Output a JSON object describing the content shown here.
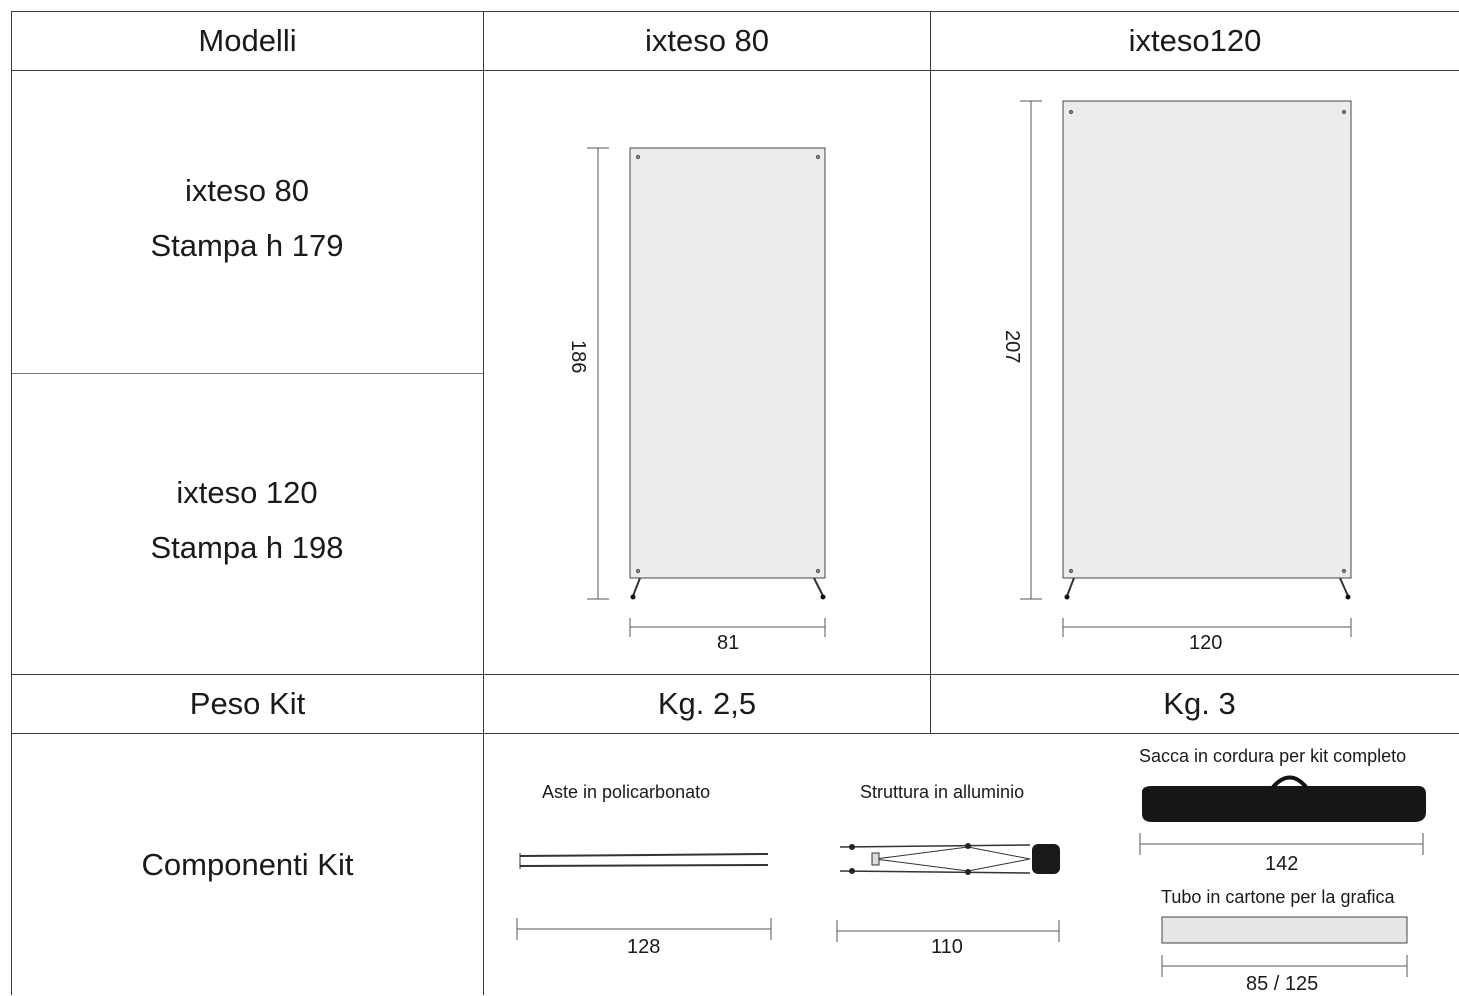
{
  "header": {
    "col_label": "Modelli",
    "col_a": "ixteso 80",
    "col_b": "ixteso120"
  },
  "models": [
    {
      "name": "ixteso 80",
      "print": "Stampa h 179"
    },
    {
      "name": "ixteso 120",
      "print": "Stampa h 198"
    }
  ],
  "drawings": {
    "a": {
      "height": "186",
      "width": "81"
    },
    "b": {
      "height": "207",
      "width": "120"
    }
  },
  "weight": {
    "label": "Peso Kit",
    "a": "Kg. 2,5",
    "b": "Kg. 3"
  },
  "components": {
    "label": "Componenti Kit",
    "rods": {
      "caption": "Aste in policarbonato",
      "length": "128"
    },
    "frame": {
      "caption": "Struttura in alluminio",
      "length": "110"
    },
    "bag": {
      "caption": "Sacca in cordura per kit completo",
      "length": "142"
    },
    "tube": {
      "caption": "Tubo in cartone per la grafica",
      "length": "85 / 125"
    }
  }
}
